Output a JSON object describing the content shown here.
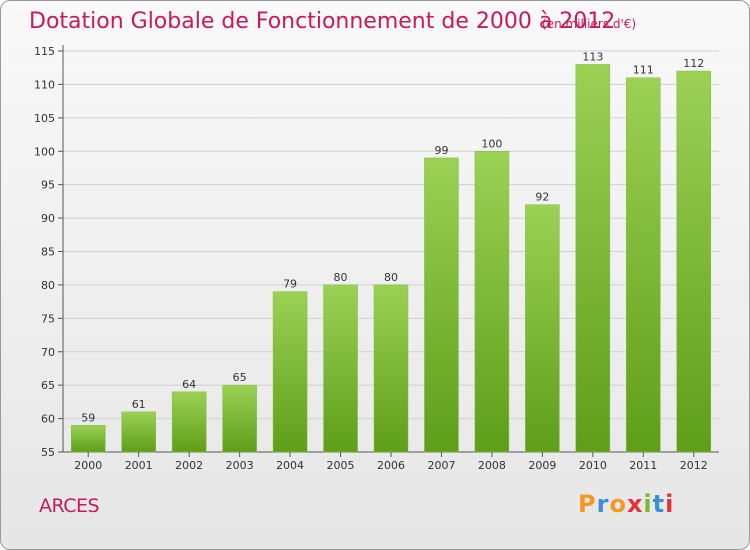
{
  "header": {
    "title": "Dotation Globale de Fonctionnement de 2000 à 2012",
    "unit": "(en milliers d'€)"
  },
  "footer": {
    "commune": "ARCES",
    "logo": "Proxiti"
  },
  "colors": {
    "title": "#c8195a",
    "bar_top": "#9bd155",
    "bar_bottom": "#5e9e19"
  },
  "chart_data": {
    "type": "bar",
    "categories": [
      "2000",
      "2001",
      "2002",
      "2003",
      "2004",
      "2005",
      "2006",
      "2007",
      "2008",
      "2009",
      "2010",
      "2011",
      "2012"
    ],
    "values": [
      59,
      61,
      64,
      65,
      79,
      80,
      80,
      99,
      100,
      92,
      113,
      111,
      112
    ],
    "title": "Dotation Globale de Fonctionnement de 2000 à 2012",
    "subtitle": "(en milliers d'€)",
    "ylim": [
      55,
      115
    ],
    "yticks": [
      55,
      60,
      65,
      70,
      75,
      80,
      85,
      90,
      95,
      100,
      105,
      110,
      115
    ],
    "grid": true
  }
}
